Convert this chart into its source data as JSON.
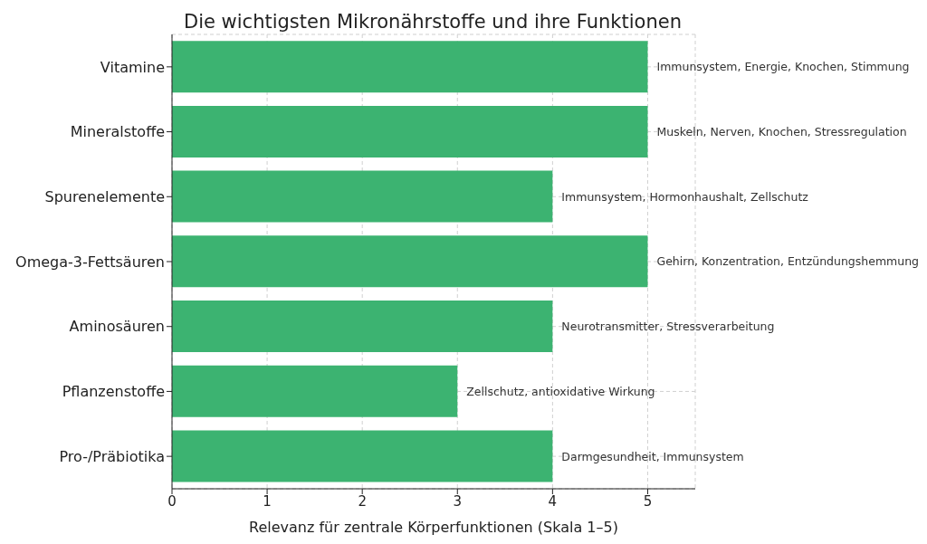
{
  "chart_data": {
    "type": "bar",
    "orientation": "horizontal",
    "title": "Die wichtigsten Mikronährstoffe und ihre Funktionen",
    "xlabel": "Relevanz für zentrale Körperfunktionen (Skala 1–5)",
    "categories": [
      "Vitamine",
      "Mineralstoffe",
      "Spurenelemente",
      "Omega-3-Fettsäuren",
      "Aminosäuren",
      "Pflanzenstoffe",
      "Pro-/Präbiotika"
    ],
    "values": [
      5,
      5,
      4,
      5,
      4,
      3,
      4
    ],
    "color": "#3cb371",
    "xlim": [
      0,
      5.5
    ],
    "xticks": [
      0,
      1,
      2,
      3,
      4,
      5
    ],
    "grid": true,
    "annotations": [
      {
        "text": "Immunsystem, Energie, Knochen, Stimmung",
        "x": 5,
        "y": "Vitamine"
      },
      {
        "text": "Muskeln, Nerven, Knochen, Stressregulation",
        "x": 5,
        "y": "Mineralstoffe"
      },
      {
        "text": "Immunsystem, Hormonhaushalt, Zellschutz",
        "x": 4,
        "y": "Spurenelemente"
      },
      {
        "text": "Gehirn, Konzentration, Entzündungshemmung",
        "x": 5,
        "y": "Omega-3-Fettsäuren"
      },
      {
        "text": "Neurotransmitter, Stressverarbeitung",
        "x": 4,
        "y": "Aminosäuren"
      },
      {
        "text": "Zellschutz, antioxidative Wirkung",
        "x": 3,
        "y": "Pflanzenstoffe"
      },
      {
        "text": "Darmgesundheit, Immunsystem",
        "x": 4,
        "y": "Pro-/Präbiotika"
      }
    ]
  }
}
